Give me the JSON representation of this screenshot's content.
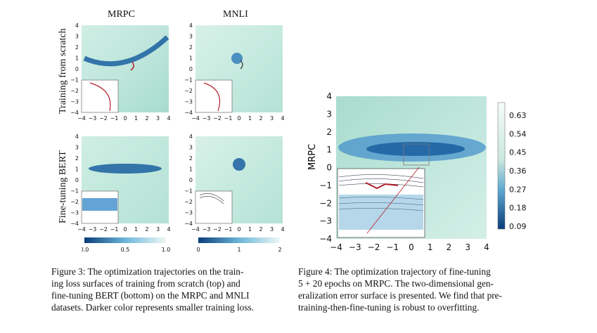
{
  "figure3": {
    "column_titles": [
      "MRPC",
      "MNLI"
    ],
    "row_labels": [
      "Training from scratch",
      "Fine-tuning BERT"
    ],
    "caption_lines": [
      "Figure 3:  The optimization trajectories on the train-",
      "ing loss surfaces of training from scratch (top) and",
      "fine-tuning BERT (bottom) on the MRPC and MNLI",
      "datasets. Darker color represents smaller training loss."
    ]
  },
  "figure4": {
    "caption_lines": [
      "Figure 4:  The optimization trajectory of fine-tuning",
      "5 + 20 epochs on MRPC. The two-dimensional gen-",
      "eralization error surface is presented. We find that pre-",
      "training-then-fine-tuning is robust to overfitting."
    ]
  },
  "chart_data": [
    {
      "type": "heatmap",
      "panel": "MRPC / Training from scratch",
      "title": "MRPC",
      "x_ticks": [
        "−4",
        "−3",
        "−2",
        "−1",
        "0",
        "1",
        "2",
        "3",
        "4"
      ],
      "y_ticks": [
        "4",
        "3",
        "2",
        "1",
        "0",
        "−1",
        "−2",
        "−3",
        "−4"
      ],
      "inset_x_ticks": [
        "−4",
        "−3",
        "−2",
        "−1"
      ],
      "xlim": [
        -4,
        4
      ],
      "ylim": [
        -4,
        4
      ],
      "colorbar": {
        "ticks": [
          "0.0",
          "0.5",
          "1.0"
        ],
        "range": [
          0,
          1.0
        ]
      }
    },
    {
      "type": "heatmap",
      "panel": "MNLI / Training from scratch",
      "title": "MNLI",
      "x_ticks": [
        "−4",
        "−3",
        "−2",
        "−1",
        "0",
        "1",
        "2",
        "3",
        "4"
      ],
      "y_ticks": [
        "4",
        "3",
        "2",
        "1",
        "0",
        "−1",
        "−2",
        "−3",
        "−4"
      ],
      "inset_x_ticks": [
        "−4",
        "−3",
        "−2",
        "−1"
      ],
      "xlim": [
        -4,
        4
      ],
      "ylim": [
        -4,
        4
      ],
      "colorbar": {
        "ticks": [
          "0",
          "1",
          "2"
        ],
        "range": [
          0,
          2
        ]
      }
    },
    {
      "type": "heatmap",
      "panel": "MRPC / Fine-tuning BERT",
      "x_ticks": [
        "−4",
        "−3",
        "−2",
        "−1",
        "0",
        "1",
        "2",
        "3",
        "4"
      ],
      "y_ticks": [
        "4",
        "3",
        "2",
        "1",
        "0",
        "−1",
        "−2",
        "−3",
        "−4"
      ],
      "inset_x_ticks": [
        "−4",
        "−3",
        "−2",
        "−1"
      ],
      "xlim": [
        -4,
        4
      ],
      "ylim": [
        -4,
        4
      ]
    },
    {
      "type": "heatmap",
      "panel": "MNLI / Fine-tuning BERT",
      "x_ticks": [
        "−4",
        "−3",
        "−2",
        "−1",
        "0",
        "1",
        "2",
        "3",
        "4"
      ],
      "y_ticks": [
        "4",
        "3",
        "2",
        "1",
        "0",
        "−1",
        "−2",
        "−3",
        "−4"
      ],
      "inset_x_ticks": [
        "−4",
        "−3",
        "−2",
        "−1"
      ],
      "xlim": [
        -4,
        4
      ],
      "ylim": [
        -4,
        4
      ]
    },
    {
      "type": "heatmap",
      "panel": "Figure 4",
      "ylabel": "MRPC",
      "x_ticks": [
        "−4",
        "−3",
        "−2",
        "−1",
        "0",
        "1",
        "2",
        "3",
        "4"
      ],
      "y_ticks": [
        "4",
        "3",
        "2",
        "1",
        "0",
        "−1",
        "−2",
        "−3",
        "−4"
      ],
      "xlim": [
        -4,
        4
      ],
      "ylim": [
        -4,
        4
      ],
      "colorbar": {
        "ticks": [
          "0.63",
          "0.54",
          "0.45",
          "0.36",
          "0.27",
          "0.18",
          "0.09"
        ],
        "range": [
          0.09,
          0.63
        ]
      }
    }
  ]
}
